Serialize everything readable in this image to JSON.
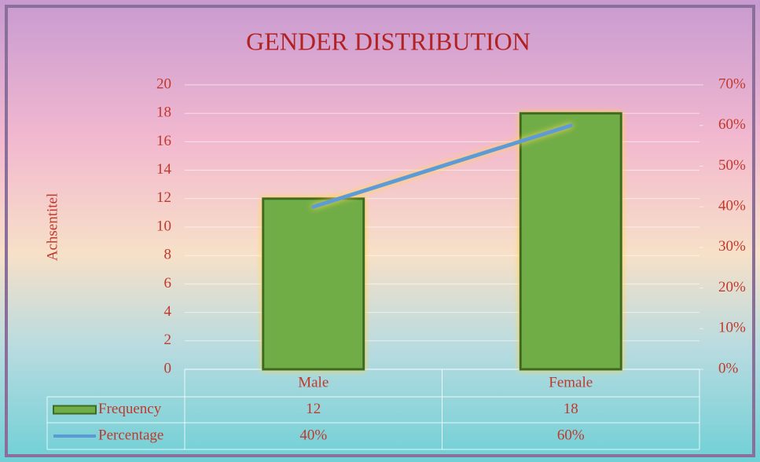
{
  "chart_data": {
    "type": "bar",
    "title": "GENDER DISTRIBUTION",
    "y_label": "Achsentitel",
    "categories": [
      "Male",
      "Female"
    ],
    "series": [
      {
        "name": "Frequency",
        "type": "bar",
        "color": "#70ad47",
        "values": [
          12,
          18
        ]
      },
      {
        "name": "Percentage",
        "type": "line",
        "axis": "y2",
        "color": "#5b9bd5",
        "values": [
          40,
          60
        ],
        "value_labels": [
          "40%",
          "60%"
        ]
      }
    ],
    "ylim": [
      0,
      20
    ],
    "yticks": [
      0,
      2,
      4,
      6,
      8,
      10,
      12,
      14,
      16,
      18,
      20
    ],
    "y2lim": [
      0,
      70
    ],
    "y2ticks": [
      {
        "value": 0,
        "label": "0%"
      },
      {
        "value": 10,
        "label": "10%"
      },
      {
        "value": 20,
        "label": "20%"
      },
      {
        "value": 30,
        "label": "30%"
      },
      {
        "value": 40,
        "label": "40%"
      },
      {
        "value": 50,
        "label": "50%"
      },
      {
        "value": 60,
        "label": "60%"
      },
      {
        "value": 70,
        "label": "70%"
      }
    ],
    "grid": true,
    "data_table": true
  }
}
